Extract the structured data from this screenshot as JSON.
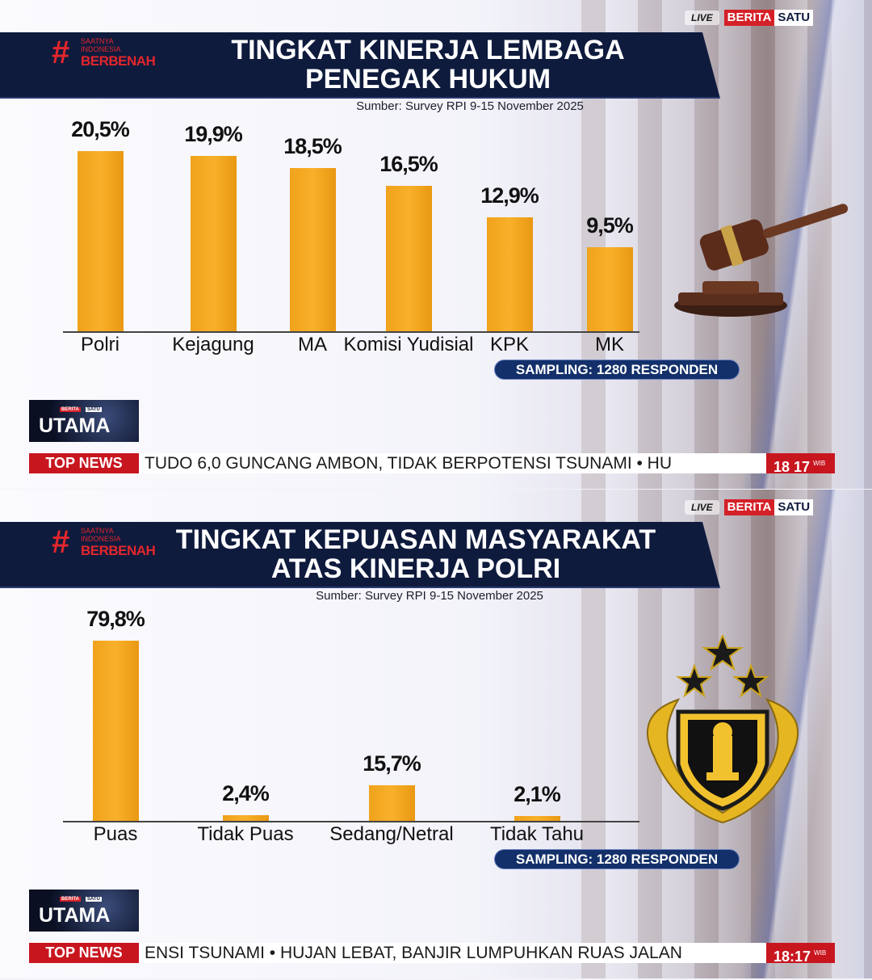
{
  "colors": {
    "bar": "#f5a623",
    "header": "#0f1b3d",
    "accent": "#c8161f"
  },
  "brand": {
    "live": "LIVE",
    "name_a": "BERITA",
    "name_b": "SATU",
    "logo_small1": "SAATNYA",
    "logo_small2": "INDONESIA",
    "logo_big": "BERBENAH",
    "show_mini_a": "BERITA",
    "show_mini_b": "SATU",
    "show_name": "UTAMA"
  },
  "chart_data": [
    {
      "type": "bar",
      "title_lines": [
        "TINGKAT KINERJA LEMBAGA",
        "PENEGAK HUKUM"
      ],
      "source": "Sumber: Survey RPI 9-15 November 2025",
      "categories": [
        "Polri",
        "Kejagung",
        "MA",
        "Komisi Yudisial",
        "KPK",
        "MK"
      ],
      "values": [
        20.5,
        19.9,
        18.5,
        16.5,
        12.9,
        9.5
      ],
      "value_labels": [
        "20,5%",
        "19,9%",
        "18,5%",
        "16,5%",
        "12,9%",
        "9,5%"
      ],
      "unit": "%",
      "sampling": "SAMPLING: 1280 RESPONDEN",
      "art_icon": "gavel-icon",
      "ticker": {
        "label": "TOP NEWS",
        "text": "TUDO 6,0 GUNCANG AMBON, TIDAK BERPOTENSI TSUNAMI  •  HU",
        "time": "18 17",
        "tz": "WIB"
      }
    },
    {
      "type": "bar",
      "title_lines": [
        "TINGKAT KEPUASAN MASYARAKAT",
        "ATAS KINERJA POLRI"
      ],
      "source": "Sumber: Survey RPI 9-15 November 2025",
      "categories": [
        "Puas",
        "Tidak Puas",
        "Sedang/Netral",
        "Tidak Tahu"
      ],
      "values": [
        79.8,
        2.4,
        15.7,
        2.1
      ],
      "value_labels": [
        "79,8%",
        "2,4%",
        "15,7%",
        "2,1%"
      ],
      "unit": "%",
      "sampling": "SAMPLING: 1280 RESPONDEN",
      "art_icon": "polri-emblem-icon",
      "ticker": {
        "label": "TOP NEWS",
        "text": "ENSI TSUNAMI  •  HUJAN LEBAT, BANJIR LUMPUHKAN RUAS JALAN",
        "time": "18:17",
        "tz": "WIB"
      }
    }
  ]
}
